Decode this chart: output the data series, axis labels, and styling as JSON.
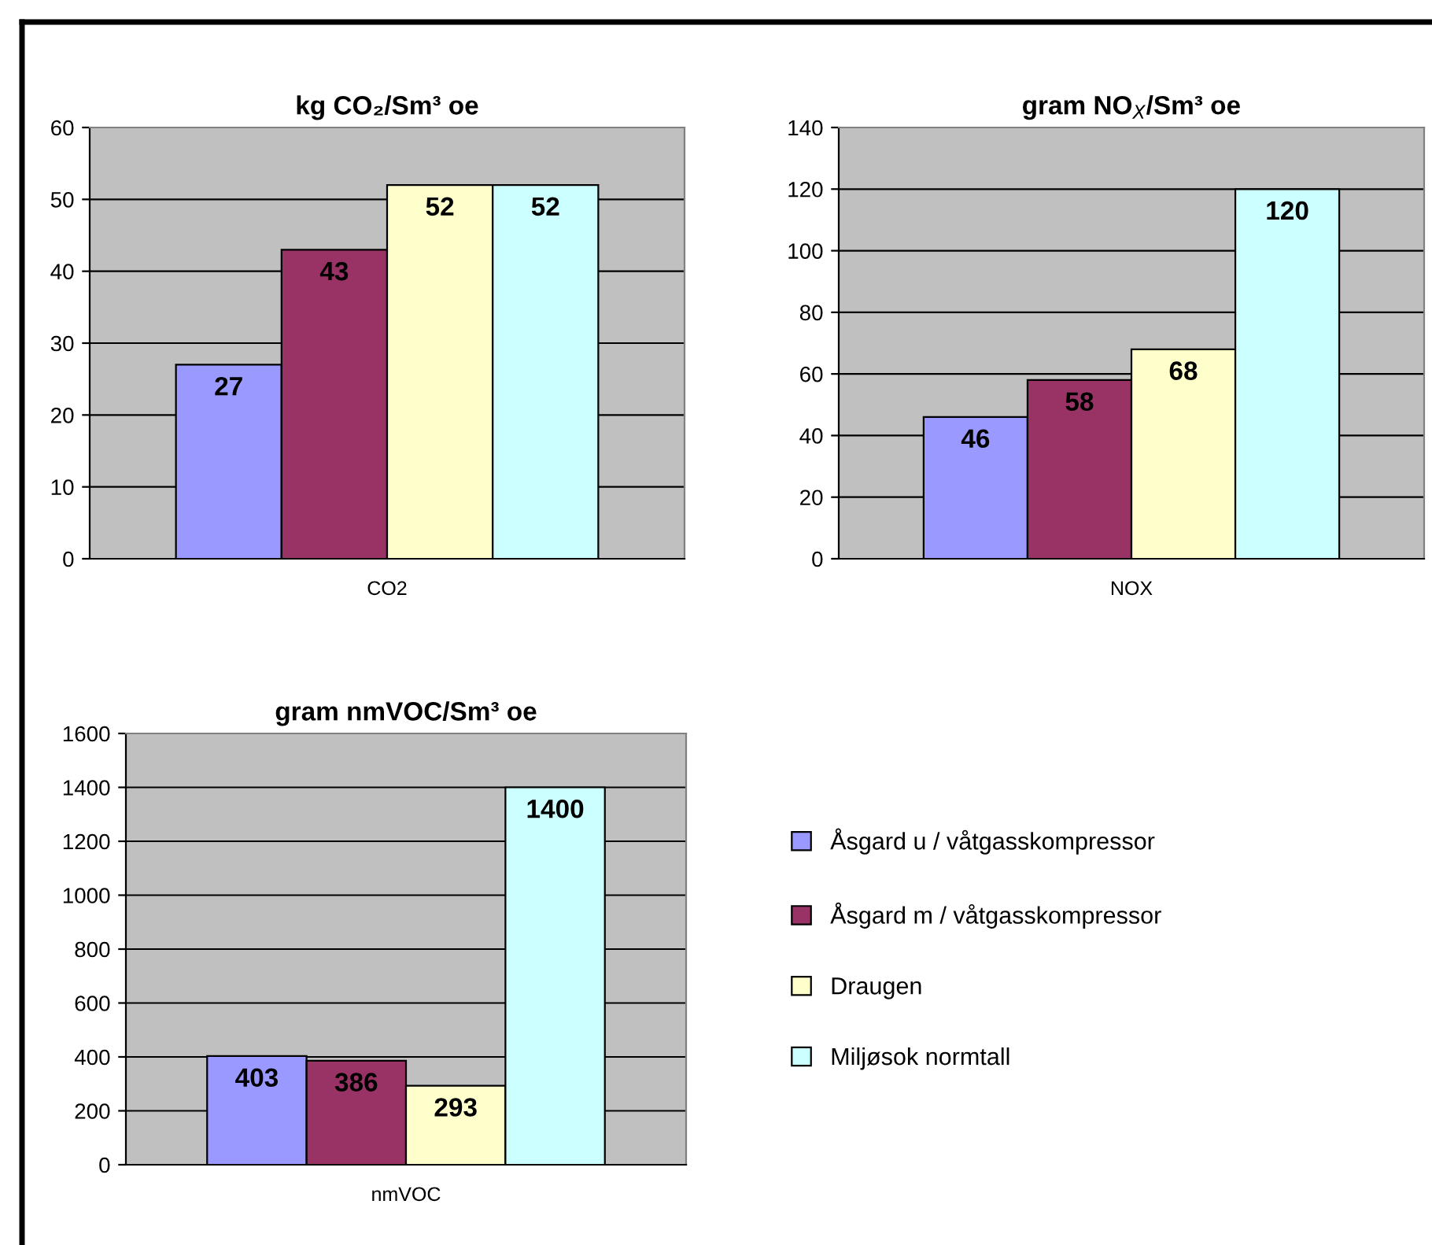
{
  "chart_data": [
    {
      "type": "bar",
      "title": "kg CO₂/Sm³ oe",
      "categories": [
        "CO2"
      ],
      "ylim": [
        0,
        60
      ],
      "yticks": [
        0,
        10,
        20,
        30,
        40,
        50,
        60
      ],
      "grid": "y",
      "data_labels": true,
      "legend": false,
      "series": [
        {
          "color": "#9999ff",
          "values": [
            27
          ]
        },
        {
          "color": "#993366",
          "values": [
            43
          ]
        },
        {
          "color": "#ffffcc",
          "values": [
            52
          ]
        },
        {
          "color": "#ccffff",
          "values": [
            52
          ]
        }
      ]
    },
    {
      "type": "bar",
      "title": "gram NO$_{X}$/Sm³ oe",
      "categories": [
        "NOX"
      ],
      "ylim": [
        0,
        140
      ],
      "yticks": [
        0,
        20,
        40,
        60,
        80,
        100,
        120,
        140
      ],
      "grid": "y",
      "data_labels": true,
      "legend": false,
      "series": [
        {
          "color": "#9999ff",
          "values": [
            46
          ]
        },
        {
          "color": "#993366",
          "values": [
            58
          ]
        },
        {
          "color": "#ffffcc",
          "values": [
            68
          ]
        },
        {
          "color": "#ccffff",
          "values": [
            120
          ]
        }
      ]
    },
    {
      "type": "bar",
      "title": "gram nmVOC/Sm³ oe",
      "categories": [
        "nmVOC"
      ],
      "ylim": [
        0,
        1600
      ],
      "yticks": [
        0,
        200,
        400,
        600,
        800,
        1000,
        1200,
        1400,
        1600
      ],
      "grid": "y",
      "data_labels": true,
      "legend": "right",
      "series": [
        {
          "name": "Åsgard u / våtgasskompressor",
          "color": "#9999ff",
          "values": [
            403
          ]
        },
        {
          "name": "Åsgard m / våtgasskompressor",
          "color": "#993366",
          "values": [
            386
          ]
        },
        {
          "name": "Draugen",
          "color": "#ffffcc",
          "values": [
            293
          ]
        },
        {
          "name": "Miljøsok normtall",
          "color": "#ccffff",
          "values": [
            1400
          ]
        }
      ]
    }
  ]
}
